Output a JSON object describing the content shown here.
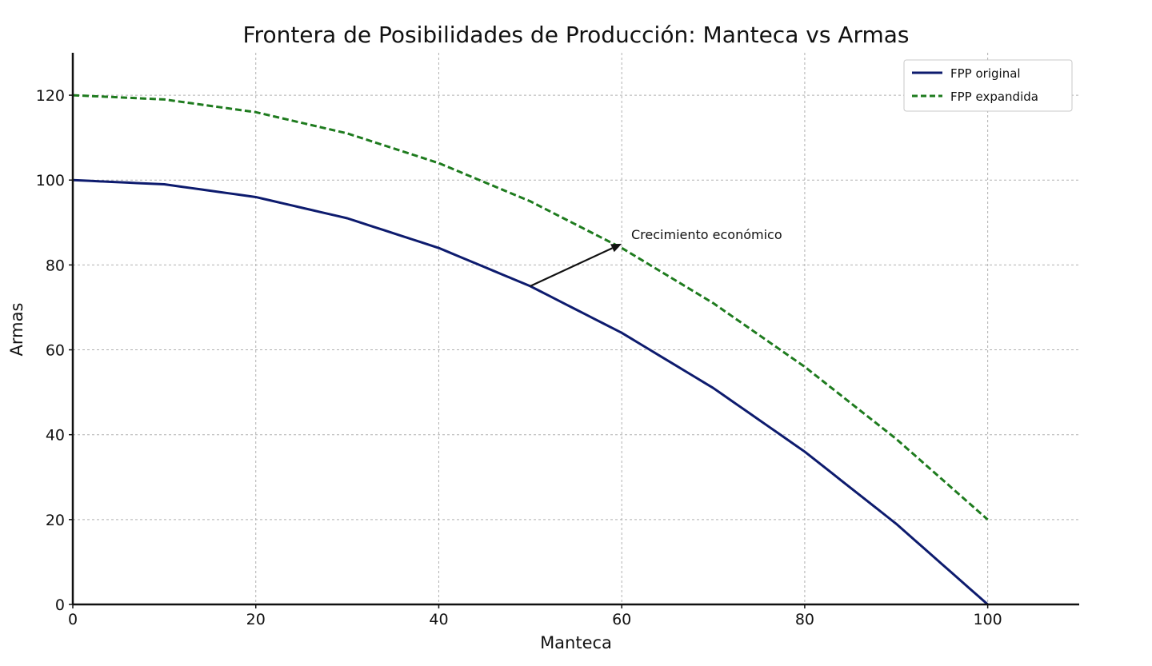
{
  "chart_data": {
    "type": "line",
    "title": "Frontera de Posibilidades de Producción: Manteca vs Armas",
    "xlabel": "Manteca",
    "ylabel": "Armas",
    "xlim": [
      0,
      110
    ],
    "ylim": [
      0,
      130
    ],
    "xticks": [
      0,
      20,
      40,
      60,
      80,
      100
    ],
    "yticks": [
      0,
      20,
      40,
      60,
      80,
      100,
      120
    ],
    "grid": true,
    "legend_position": "top-right",
    "series": [
      {
        "name": "FPP original",
        "color": "#0d1b6e",
        "style": "solid",
        "x": [
          0,
          10,
          20,
          30,
          40,
          50,
          60,
          70,
          80,
          90,
          100
        ],
        "y": [
          100,
          99,
          96,
          91,
          84,
          75,
          64,
          51,
          36,
          19,
          0
        ]
      },
      {
        "name": "FPP expandida",
        "color": "#1e7b1e",
        "style": "dashed",
        "x": [
          0,
          10,
          20,
          30,
          40,
          50,
          60,
          70,
          80,
          90,
          100
        ],
        "y": [
          120,
          119,
          116,
          111,
          104,
          95,
          84,
          71,
          56,
          39,
          20
        ]
      }
    ],
    "annotations": [
      {
        "text": "Crecimiento económico",
        "from": [
          50,
          75
        ],
        "to": [
          60,
          85
        ]
      }
    ]
  }
}
